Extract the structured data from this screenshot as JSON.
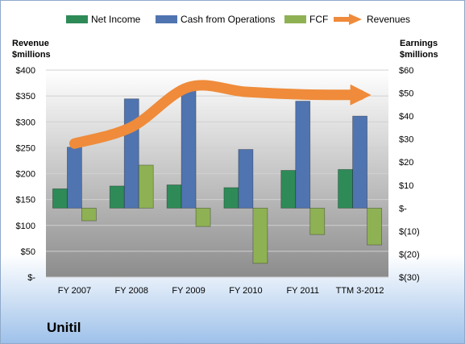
{
  "company_name": "Unitil",
  "colors": {
    "net_income": "#2e8b57",
    "cash_from_operations": "#4f74b0",
    "fcf": "#8eb153",
    "revenues": "#ef8b3a",
    "plot_background_top": "#ffffff",
    "plot_background_bottom": "#8c8c8c"
  },
  "chart_data": {
    "type": "bar",
    "categories": [
      "FY 2007",
      "FY 2008",
      "FY 2009",
      "FY 2010",
      "FY 2011",
      "TTM 3-2012"
    ],
    "legend_position": "top",
    "grid": true,
    "y_left": {
      "label_lines": [
        "Revenue",
        "$millions"
      ],
      "range": [
        0,
        400
      ],
      "ticks": [
        "$-",
        "$50",
        "$100",
        "$150",
        "$200",
        "$250",
        "$300",
        "$350",
        "$400"
      ]
    },
    "y_right": {
      "label_lines": [
        "Earnings",
        "$millions"
      ],
      "range": [
        -30,
        60
      ],
      "ticks": [
        "$(30)",
        "$(20)",
        "$(10)",
        "$-",
        "$10",
        "$20",
        "$30",
        "$40",
        "$50",
        "$60"
      ]
    },
    "series": [
      {
        "name": "Net Income",
        "type": "bar",
        "axis": "right",
        "values": [
          8.4,
          9.6,
          10.1,
          8.9,
          16.4,
          16.8
        ]
      },
      {
        "name": "Cash from Operations",
        "type": "bar",
        "axis": "right",
        "values": [
          26.5,
          47.5,
          52.5,
          25.5,
          46.5,
          40.0
        ]
      },
      {
        "name": "FCF",
        "type": "bar",
        "axis": "right",
        "values": [
          -5.5,
          18.7,
          -8.0,
          -24.0,
          -11.5,
          -16.0
        ]
      },
      {
        "name": "Revenues",
        "type": "line",
        "axis": "left",
        "values": [
          258,
          290,
          367,
          358,
          353,
          352
        ]
      }
    ]
  }
}
